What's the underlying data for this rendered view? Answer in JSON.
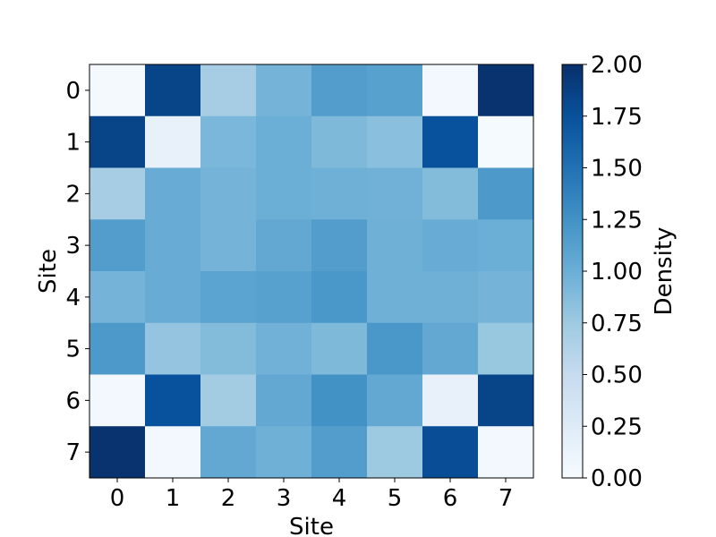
{
  "chart_data": {
    "type": "heatmap",
    "title": "",
    "xlabel": "Site",
    "ylabel": "Site",
    "x_categories": [
      "0",
      "1",
      "2",
      "3",
      "4",
      "5",
      "6",
      "7"
    ],
    "y_categories": [
      "0",
      "1",
      "2",
      "3",
      "4",
      "5",
      "6",
      "7"
    ],
    "values": [
      [
        0.03,
        1.85,
        0.7,
        0.95,
        1.15,
        1.12,
        0.05,
        1.98
      ],
      [
        1.85,
        0.15,
        0.92,
        1.0,
        0.9,
        0.85,
        1.75,
        0.02
      ],
      [
        0.7,
        1.02,
        0.95,
        1.0,
        0.98,
        0.97,
        0.88,
        1.18
      ],
      [
        1.15,
        1.02,
        0.95,
        1.05,
        1.15,
        0.98,
        1.02,
        1.0
      ],
      [
        0.95,
        1.02,
        1.1,
        1.12,
        1.2,
        0.98,
        0.98,
        0.95
      ],
      [
        1.18,
        0.8,
        0.88,
        0.97,
        0.9,
        1.2,
        1.05,
        0.78
      ],
      [
        0.05,
        1.75,
        0.72,
        1.05,
        1.25,
        1.05,
        0.15,
        1.85
      ],
      [
        1.98,
        0.05,
        1.05,
        0.98,
        1.15,
        0.75,
        1.78,
        0.05
      ]
    ],
    "vmin": 0.0,
    "vmax": 2.0,
    "colormap": "Blues",
    "colorbar": {
      "label": "Density",
      "ticks": [
        "0.00",
        "0.25",
        "0.50",
        "0.75",
        "1.00",
        "1.25",
        "1.50",
        "1.75",
        "2.00"
      ]
    },
    "grid": false
  }
}
